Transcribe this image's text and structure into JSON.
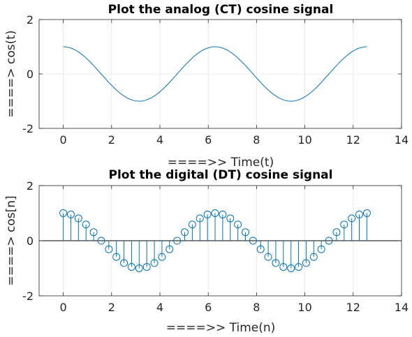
{
  "chart_data": [
    {
      "type": "line",
      "title": "Plot the analog (CT) cosine signal",
      "xlabel": "====>>  Time(t)",
      "ylabel": "====>  cos(t)",
      "xlim": [
        -1,
        14
      ],
      "ylim": [
        -2,
        2
      ],
      "xticks": [
        0,
        2,
        4,
        6,
        8,
        10,
        12,
        14
      ],
      "yticks": [
        -2,
        0,
        2
      ],
      "grid": true,
      "series": [
        {
          "function": "cos(t)",
          "x_start": 0,
          "x_end": 12.566,
          "color": "#0072BD"
        }
      ]
    },
    {
      "type": "stem",
      "title": "Plot the digital (DT) cosine signal",
      "xlabel": "====>>  Time(n)",
      "ylabel": "====>  cos[n]",
      "xlim": [
        -1,
        14
      ],
      "ylim": [
        -2,
        2
      ],
      "xticks": [
        0,
        2,
        4,
        6,
        8,
        10,
        12,
        14
      ],
      "yticks": [
        -2,
        0,
        2
      ],
      "grid": true,
      "series": [
        {
          "function": "cos(n)",
          "x": [
            0,
            0.314,
            0.628,
            0.942,
            1.257,
            1.571,
            1.885,
            2.199,
            2.513,
            2.827,
            3.142,
            3.456,
            3.77,
            4.084,
            4.398,
            4.712,
            5.027,
            5.341,
            5.655,
            5.969,
            6.283,
            6.597,
            6.912,
            7.226,
            7.54,
            7.854,
            8.168,
            8.482,
            8.796,
            9.111,
            9.425,
            9.739,
            10.053,
            10.367,
            10.681,
            10.996,
            11.31,
            11.624,
            11.938,
            12.252,
            12.566
          ],
          "color": "#0072BD"
        }
      ]
    }
  ]
}
